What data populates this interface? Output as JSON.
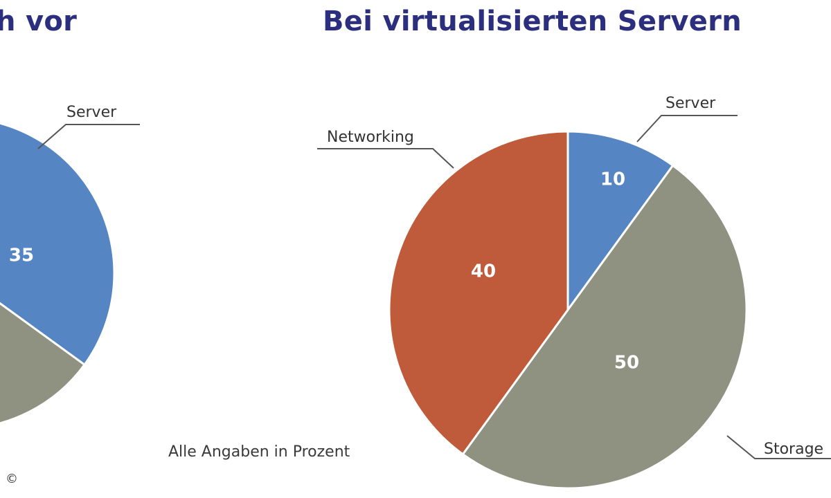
{
  "chart_data": [
    {
      "type": "pie",
      "title": "h vor",
      "slices": [
        {
          "label": "Server",
          "value": 35,
          "color": "#5585c2"
        },
        {
          "label": "",
          "value": 15,
          "color": "#8f9280"
        }
      ]
    },
    {
      "type": "pie",
      "title": "Bei virtualisierten Servern",
      "slices": [
        {
          "label": "Server",
          "value": 10,
          "color": "#5585c2"
        },
        {
          "label": "Storage",
          "value": 50,
          "color": "#8f9280"
        },
        {
          "label": "Networking",
          "value": 40,
          "color": "#bf5a3a"
        }
      ]
    }
  ],
  "footnote": "Alle Angaben in Prozent",
  "copyright": "©"
}
